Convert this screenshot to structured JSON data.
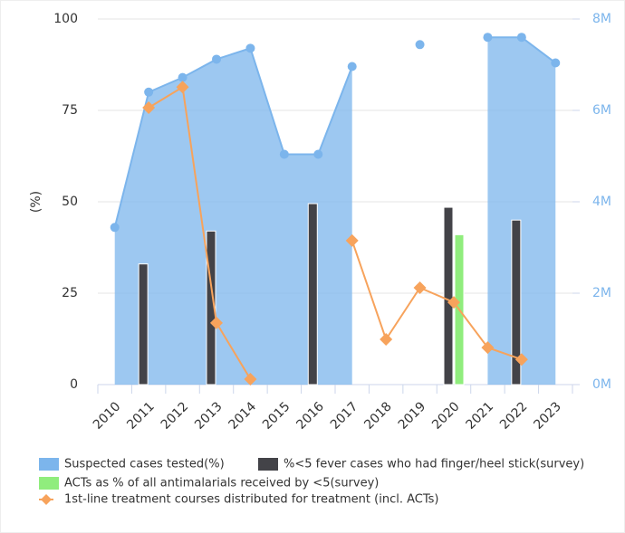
{
  "chart_data": {
    "type": "combo",
    "y_label": "(%)",
    "categories": [
      "2010",
      "2011",
      "2012",
      "2013",
      "2014",
      "2015",
      "2016",
      "2017",
      "2018",
      "2019",
      "2020",
      "2021",
      "2022",
      "2023"
    ],
    "ylim": [
      0,
      100
    ],
    "yticks": [
      0,
      25,
      50,
      75,
      100
    ],
    "y2lim": [
      0,
      8000000
    ],
    "y2ticks": [
      {
        "value": 0,
        "label": "0M"
      },
      {
        "value": 2000000,
        "label": "2M"
      },
      {
        "value": 4000000,
        "label": "4M"
      },
      {
        "value": 6000000,
        "label": "6M"
      },
      {
        "value": 8000000,
        "label": "8M"
      }
    ],
    "grid": true,
    "series": [
      {
        "name": "Suspected cases tested(%)",
        "kind": "area",
        "color": "#7cb5ec",
        "values": [
          43,
          80,
          84,
          89,
          92,
          63,
          63,
          87,
          null,
          93,
          null,
          95,
          95,
          88
        ]
      },
      {
        "name": "%<5 fever cases who had finger/heel stick(survey)",
        "kind": "bar",
        "color": "#434348",
        "values": [
          null,
          33,
          null,
          42,
          null,
          null,
          49.5,
          null,
          null,
          null,
          48.5,
          null,
          45,
          null
        ]
      },
      {
        "name": "ACTs as % of all antimalarials received by <5(survey)",
        "kind": "bar",
        "color": "#90ed7d",
        "values": [
          null,
          null,
          null,
          null,
          null,
          null,
          null,
          null,
          null,
          null,
          41,
          null,
          null,
          null
        ]
      },
      {
        "name": "1st-line treatment courses distributed for treatment (incl. ACTs)",
        "kind": "line",
        "color": "#f7a35c",
        "axis": "y2",
        "values": [
          null,
          6060000,
          6510000,
          1350000,
          120000,
          null,
          null,
          3150000,
          990000,
          2120000,
          1800000,
          810000,
          550000,
          null
        ]
      }
    ]
  }
}
